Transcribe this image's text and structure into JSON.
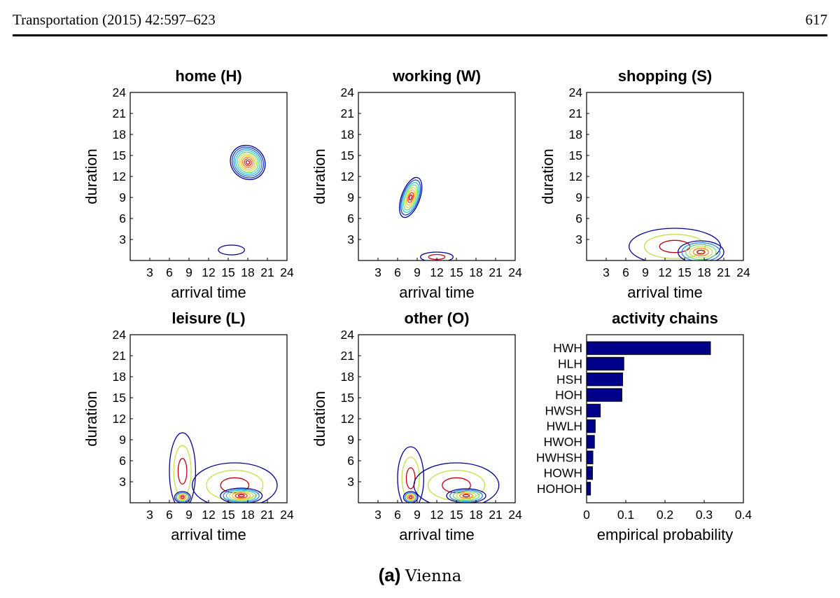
{
  "header": {
    "journal": "Transportation (2015) 42:597–623",
    "page_number": "617"
  },
  "caption": {
    "label": "(a)",
    "text": "Vienna"
  },
  "colors": {
    "contour_levels": [
      "#00008f",
      "#1f3fd0",
      "#2f86e8",
      "#30c8d8",
      "#6ad88a",
      "#c8e048",
      "#f0c030",
      "#f08a28",
      "#e04020",
      "#c00010"
    ],
    "bar_fill": "#00008b",
    "bar_edge": "#000000"
  },
  "chart_data": [
    {
      "type": "contour",
      "title": "home (H)",
      "xlabel": "arrival time",
      "ylabel": "duration",
      "xlim": [
        0,
        24
      ],
      "ylim": [
        0,
        24
      ],
      "xticks": [
        3,
        6,
        9,
        12,
        15,
        18,
        21,
        24
      ],
      "yticks": [
        3,
        6,
        9,
        12,
        15,
        18,
        21,
        24
      ],
      "peaks": [
        {
          "x": 18,
          "y": 14,
          "sx": 2.5,
          "sy": 2.6,
          "angle": -50,
          "levels": 10
        },
        {
          "x": 15.5,
          "y": 1.5,
          "sx": 2,
          "sy": 0.7,
          "angle": 0,
          "levels": 1
        }
      ]
    },
    {
      "type": "contour",
      "title": "working (W)",
      "xlabel": "arrival time",
      "ylabel": "duration",
      "xlim": [
        0,
        24
      ],
      "ylim": [
        0,
        24
      ],
      "xticks": [
        3,
        6,
        9,
        12,
        15,
        18,
        21,
        24
      ],
      "yticks": [
        3,
        6,
        9,
        12,
        15,
        18,
        21,
        24
      ],
      "peaks": [
        {
          "x": 8,
          "y": 9,
          "sx": 1.4,
          "sy": 3,
          "angle": 20,
          "levels": 8
        },
        {
          "x": 12,
          "y": 0.5,
          "sx": 2.5,
          "sy": 0.7,
          "angle": 0,
          "levels": 2
        }
      ]
    },
    {
      "type": "contour",
      "title": "shopping (S)",
      "xlabel": "arrival time",
      "ylabel": "duration",
      "xlim": [
        0,
        24
      ],
      "ylim": [
        0,
        24
      ],
      "xticks": [
        3,
        6,
        9,
        12,
        15,
        18,
        21,
        24
      ],
      "yticks": [
        3,
        6,
        9,
        12,
        15,
        18,
        21,
        24
      ],
      "peaks": [
        {
          "x": 13.5,
          "y": 2,
          "sx": 7,
          "sy": 2.6,
          "angle": 0,
          "levels": 3
        },
        {
          "x": 17.5,
          "y": 1.2,
          "sx": 3.5,
          "sy": 1.6,
          "angle": 0,
          "levels": 6
        }
      ]
    },
    {
      "type": "contour",
      "title": "leisure (L)",
      "xlabel": "arrival time",
      "ylabel": "duration",
      "xlim": [
        0,
        24
      ],
      "ylim": [
        0,
        24
      ],
      "xticks": [
        3,
        6,
        9,
        12,
        15,
        18,
        21,
        24
      ],
      "yticks": [
        3,
        6,
        9,
        12,
        15,
        18,
        21,
        24
      ],
      "peaks": [
        {
          "x": 8,
          "y": 4.5,
          "sx": 2,
          "sy": 5.5,
          "angle": 0,
          "levels": 3
        },
        {
          "x": 16,
          "y": 2.5,
          "sx": 6.5,
          "sy": 3.2,
          "angle": 0,
          "levels": 3
        },
        {
          "x": 17,
          "y": 1,
          "sx": 3.2,
          "sy": 1.1,
          "angle": 0,
          "levels": 7
        },
        {
          "x": 8,
          "y": 0.8,
          "sx": 1.2,
          "sy": 0.8,
          "angle": 0,
          "levels": 5
        }
      ]
    },
    {
      "type": "contour",
      "title": "other (O)",
      "xlabel": "arrival time",
      "ylabel": "duration",
      "xlim": [
        0,
        24
      ],
      "ylim": [
        0,
        24
      ],
      "xticks": [
        3,
        6,
        9,
        12,
        15,
        18,
        21,
        24
      ],
      "yticks": [
        3,
        6,
        9,
        12,
        15,
        18,
        21,
        24
      ],
      "peaks": [
        {
          "x": 8,
          "y": 3.5,
          "sx": 2,
          "sy": 4.5,
          "angle": 0,
          "levels": 3
        },
        {
          "x": 15,
          "y": 2.5,
          "sx": 6.5,
          "sy": 3.2,
          "angle": 0,
          "levels": 3
        },
        {
          "x": 16.5,
          "y": 1,
          "sx": 3,
          "sy": 1,
          "angle": 0,
          "levels": 6
        },
        {
          "x": 8,
          "y": 0.8,
          "sx": 1.1,
          "sy": 0.8,
          "angle": 0,
          "levels": 5
        }
      ]
    },
    {
      "type": "bar",
      "orientation": "horizontal",
      "title": "activity chains",
      "xlabel": "empirical probability",
      "categories": [
        "HWH",
        "HLH",
        "HSH",
        "HOH",
        "HWSH",
        "HWLH",
        "HWOH",
        "HWHSH",
        "HOWH",
        "HOHOH"
      ],
      "values": [
        0.316,
        0.095,
        0.092,
        0.09,
        0.035,
        0.022,
        0.02,
        0.016,
        0.015,
        0.01
      ],
      "xlim": [
        0,
        0.4
      ],
      "xticks": [
        "0",
        "0.1",
        "0.2",
        "0.3",
        "0.4"
      ]
    }
  ]
}
